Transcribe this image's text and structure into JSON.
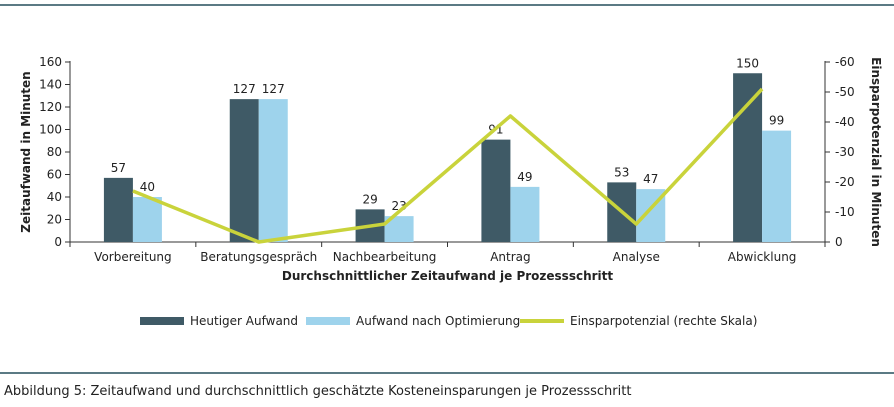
{
  "caption": "Abbildung 5: Zeitaufwand und durchschnittlich geschätzte Kosteneinsparungen je Prozessschritt",
  "colors": {
    "rule": "#5b7a84",
    "heutiger": "#3f5a66",
    "optimiert": "#9ed3ec",
    "einspar": "#c9d33b",
    "axis": "#333333",
    "grid": "#d9d9d9"
  },
  "chart_data": {
    "type": "bar",
    "title": "",
    "xlabel": "Durchschnittlicher Zeitaufwand je Prozessschritt",
    "ylabel": "Zeitaufwand in Minuten",
    "y2label": "Einsparpotenzial in Minuten",
    "ylim": [
      0,
      160
    ],
    "yticks": [
      0,
      20,
      40,
      60,
      80,
      100,
      120,
      140,
      160
    ],
    "y2lim": [
      0,
      -60
    ],
    "y2ticks": [
      0,
      -10,
      -20,
      -30,
      -40,
      -50,
      -60
    ],
    "y2ticklabels": [
      "0",
      "-10",
      "-20",
      "-30",
      "-40",
      "-50",
      "-60"
    ],
    "categories": [
      "Vorbereitung",
      "Beratungsgespräch",
      "Nachbearbeitung",
      "Antrag",
      "Analyse",
      "Abwicklung"
    ],
    "series": [
      {
        "name": "Heutiger Aufwand",
        "type": "bar",
        "axis": "left",
        "values": [
          57,
          127,
          29,
          91,
          53,
          150
        ],
        "labels": [
          "57",
          "127",
          "29",
          "91",
          "53",
          "150"
        ]
      },
      {
        "name": "Aufwand nach Optimierung",
        "type": "bar",
        "axis": "left",
        "values": [
          40,
          127,
          23,
          49,
          47,
          99
        ],
        "labels": [
          "40",
          "127",
          "23",
          "49",
          "47",
          "99"
        ]
      },
      {
        "name": "Einsparpotenzial (rechte Skala)",
        "type": "line",
        "axis": "right",
        "values": [
          -17,
          0,
          -6,
          -42,
          -6,
          -51
        ]
      }
    ],
    "legend_position": "bottom",
    "grid": false
  }
}
